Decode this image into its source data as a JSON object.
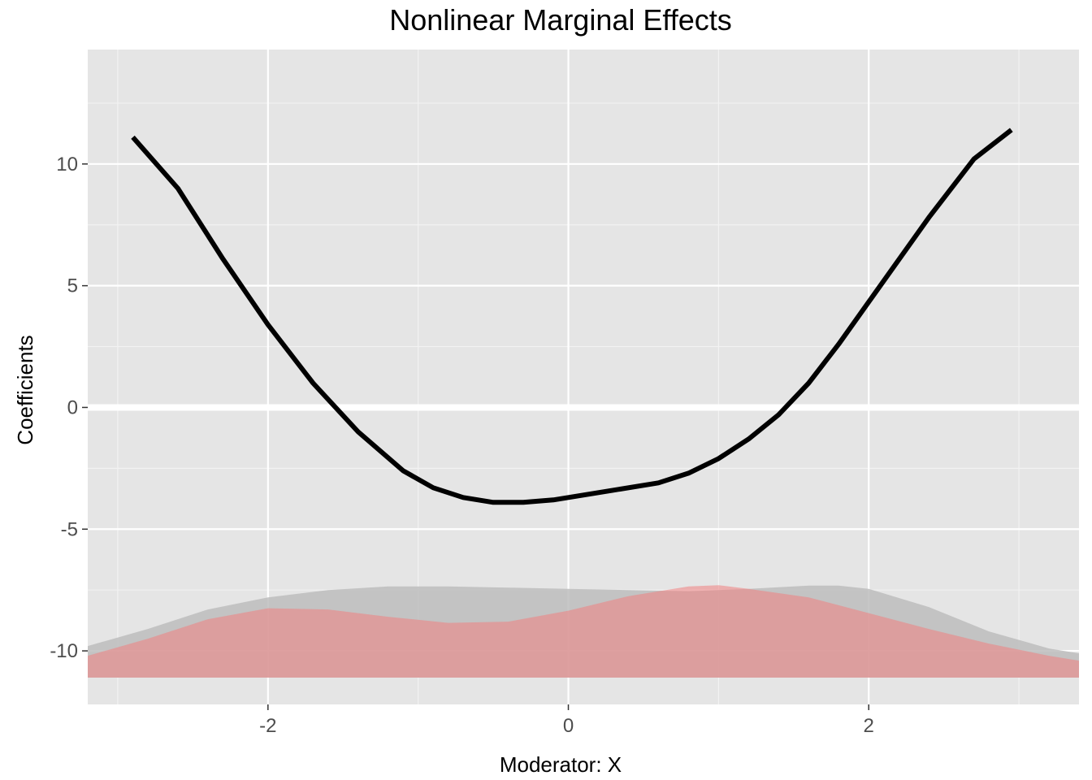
{
  "chart_data": {
    "type": "line",
    "title": "Nonlinear Marginal Effects",
    "xlabel": "Moderator: X",
    "ylabel": "Coefficients",
    "xlim": [
      -3.2,
      3.4
    ],
    "ylim": [
      -12.2,
      14.7
    ],
    "x_ticks": [
      -2,
      0,
      2
    ],
    "x_tick_labels": [
      "-2",
      "0",
      "2"
    ],
    "y_ticks": [
      -10,
      -5,
      0,
      5,
      10
    ],
    "y_tick_labels": [
      "-10",
      "-5",
      "0",
      "5",
      "10"
    ],
    "grid": true,
    "reference_line_y": 0,
    "series": [
      {
        "values_x": [
          -2.9,
          -2.6,
          -2.3,
          -2.0,
          -1.7,
          -1.4,
          -1.1,
          -0.9,
          -0.7,
          -0.5,
          -0.3,
          -0.1,
          0.1,
          0.3,
          0.6,
          0.8,
          1.0,
          1.2,
          1.4,
          1.6,
          1.8,
          2.1,
          2.4,
          2.7,
          2.95
        ],
        "values_y": [
          11.1,
          9.0,
          6.1,
          3.4,
          1.0,
          -1.0,
          -2.6,
          -3.3,
          -3.7,
          -3.9,
          -3.9,
          -3.8,
          -3.6,
          -3.4,
          -3.1,
          -2.7,
          -2.1,
          -1.3,
          -0.3,
          1.0,
          2.6,
          5.2,
          7.8,
          10.2,
          11.4
        ],
        "color": "#000000"
      }
    ],
    "density_bands": [
      {
        "values_x": [
          -3.2,
          -2.8,
          -2.4,
          -2.0,
          -1.6,
          -1.2,
          -0.8,
          -0.4,
          0.0,
          0.4,
          0.8,
          1.2,
          1.6,
          1.8,
          2.0,
          2.4,
          2.8,
          3.2,
          3.4
        ],
        "values_y": [
          -9.8,
          -9.1,
          -8.3,
          -7.8,
          -7.5,
          -7.35,
          -7.35,
          -7.4,
          -7.45,
          -7.5,
          -7.55,
          -7.45,
          -7.32,
          -7.32,
          -7.45,
          -8.2,
          -9.2,
          -9.9,
          -10.1
        ],
        "baseline": -11.1,
        "color": "#bdbdbd"
      },
      {
        "values_x": [
          -3.2,
          -2.8,
          -2.4,
          -2.0,
          -1.6,
          -1.2,
          -0.8,
          -0.4,
          0.0,
          0.4,
          0.8,
          1.0,
          1.2,
          1.6,
          2.0,
          2.4,
          2.8,
          3.2,
          3.4
        ],
        "values_y": [
          -10.2,
          -9.5,
          -8.7,
          -8.25,
          -8.3,
          -8.6,
          -8.85,
          -8.8,
          -8.35,
          -7.75,
          -7.35,
          -7.3,
          -7.45,
          -7.8,
          -8.45,
          -9.1,
          -9.7,
          -10.2,
          -10.4
        ],
        "baseline": -11.1,
        "color": "#f08080"
      }
    ]
  }
}
